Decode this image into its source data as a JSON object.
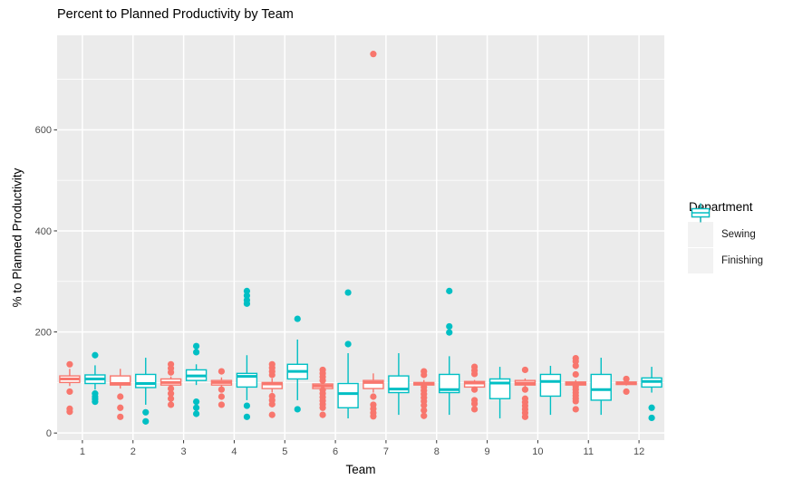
{
  "chart_data": {
    "type": "boxplot",
    "title": "Percent to Planned Productivity by Team",
    "xlabel": "Team",
    "ylabel": "% to Planned Productivity",
    "categories": [
      "1",
      "2",
      "3",
      "4",
      "5",
      "6",
      "7",
      "8",
      "9",
      "10",
      "11",
      "12"
    ],
    "y_ticks": [
      0,
      200,
      400,
      600
    ],
    "y_minor_ticks": [
      100,
      300,
      500,
      700
    ],
    "ylim": [
      -14,
      787
    ],
    "grid": "white major and minor horizontal lines, white vertical lines at each category, on gray panel",
    "panel_bg": "#EBEBEB",
    "gridline_color": "#FFFFFF",
    "tick_label_color": "#4D4D4D",
    "legend": {
      "title": "Department",
      "position": "right",
      "key_bg": "#F2F2F2"
    },
    "series": [
      {
        "name": "Sewing",
        "color": "#F8766D",
        "boxes": [
          {
            "low": 93,
            "q1": 100,
            "med": 107,
            "q3": 113,
            "high": 127,
            "out": [
              136,
              82,
              48,
              42
            ]
          },
          {
            "low": 88,
            "q1": 95,
            "med": 98,
            "q3": 113,
            "high": 127,
            "out": [
              72,
              50,
              32
            ]
          },
          {
            "low": 91,
            "q1": 95,
            "med": 100,
            "q3": 107,
            "high": 112,
            "out": [
              136,
              128,
              120,
              88,
              78,
              68,
              56
            ]
          },
          {
            "low": 88,
            "q1": 95,
            "med": 100,
            "q3": 104,
            "high": 110,
            "out": [
              122,
              86,
              72,
              56
            ]
          },
          {
            "low": 80,
            "q1": 88,
            "med": 97,
            "q3": 100,
            "high": 108,
            "out": [
              136,
              129,
              122,
              115,
              73,
              65,
              57,
              36
            ]
          },
          {
            "low": 87,
            "q1": 88,
            "med": 93,
            "q3": 97,
            "high": 101,
            "out": [
              125,
              118,
              111,
              104,
              85,
              78,
              71,
              64,
              57,
              50,
              36
            ]
          },
          {
            "low": 80,
            "q1": 88,
            "med": 100,
            "q3": 104,
            "high": 118,
            "out": [
              750,
              72,
              56,
              48,
              40,
              33
            ]
          },
          {
            "low": 93,
            "q1": 95,
            "med": 98,
            "q3": 100,
            "high": 105,
            "out": [
              122,
              115,
              91,
              84,
              77,
              70,
              63,
              55,
              45,
              34
            ]
          },
          {
            "low": 88,
            "q1": 91,
            "med": 99,
            "q3": 102,
            "high": 105,
            "out": [
              131,
              124,
              117,
              86,
              65,
              58,
              47
            ]
          },
          {
            "low": 90,
            "q1": 95,
            "med": 99,
            "q3": 104,
            "high": 108,
            "out": [
              125,
              86,
              68,
              61,
              54,
              47,
              40,
              32
            ]
          },
          {
            "low": 93,
            "q1": 95,
            "med": 98,
            "q3": 101,
            "high": 105,
            "out": [
              148,
              142,
              133,
              116,
              92,
              86,
              80,
              74,
              68,
              63,
              47
            ]
          },
          {
            "low": 94,
            "q1": 96,
            "med": 98,
            "q3": 101,
            "high": 103,
            "out": [
              107,
              82
            ]
          }
        ]
      },
      {
        "name": "Finishing",
        "color": "#00BFC4",
        "boxes": [
          {
            "low": 86,
            "q1": 98,
            "med": 107,
            "q3": 115,
            "high": 134,
            "out": [
              154,
              78,
              72,
              67,
              62
            ]
          },
          {
            "low": 56,
            "q1": 90,
            "med": 98,
            "q3": 116,
            "high": 149,
            "out": [
              41,
              23
            ]
          },
          {
            "low": 95,
            "q1": 104,
            "med": 113,
            "q3": 125,
            "high": 136,
            "out": [
              172,
              160,
              62,
              50,
              38
            ]
          },
          {
            "low": 65,
            "q1": 91,
            "med": 112,
            "q3": 118,
            "high": 154,
            "out": [
              281,
              272,
              263,
              256,
              54,
              32
            ]
          },
          {
            "low": 65,
            "q1": 107,
            "med": 122,
            "q3": 136,
            "high": 185,
            "out": [
              226,
              47
            ]
          },
          {
            "low": 29,
            "q1": 50,
            "med": 78,
            "q3": 98,
            "high": 158,
            "out": [
              278,
              176
            ]
          },
          {
            "low": 36,
            "q1": 80,
            "med": 87,
            "q3": 113,
            "high": 158,
            "out": []
          },
          {
            "low": 36,
            "q1": 80,
            "med": 86,
            "q3": 116,
            "high": 152,
            "out": [
              281,
              211,
              199
            ]
          },
          {
            "low": 29,
            "q1": 68,
            "med": 99,
            "q3": 107,
            "high": 131,
            "out": []
          },
          {
            "low": 36,
            "q1": 73,
            "med": 102,
            "q3": 116,
            "high": 133,
            "out": []
          },
          {
            "low": 36,
            "q1": 65,
            "med": 86,
            "q3": 116,
            "high": 149,
            "out": []
          },
          {
            "low": 80,
            "q1": 91,
            "med": 102,
            "q3": 109,
            "high": 131,
            "out": [
              50,
              30
            ]
          }
        ]
      }
    ]
  }
}
